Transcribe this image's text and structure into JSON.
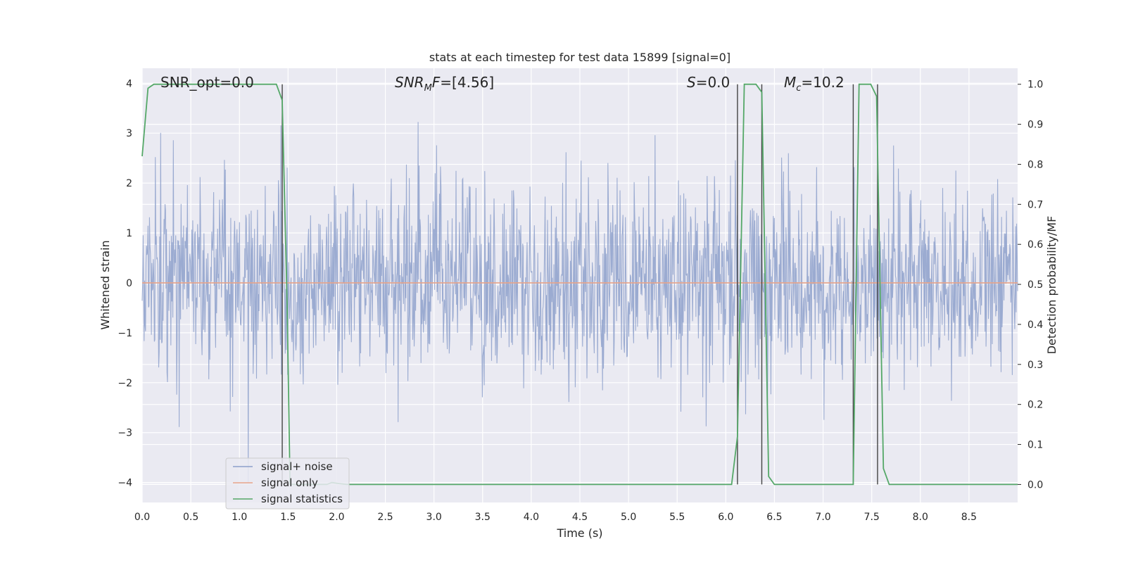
{
  "chart_data": {
    "type": "line",
    "title": "stats at each timestep for test data 15899 [signal=0]",
    "xlabel": "Time (s)",
    "ylabel_left": "Whitened strain",
    "ylabel_right": "Detection probability/MF",
    "xlim": [
      0,
      9.0
    ],
    "ylim_left": [
      -4.4,
      4.3
    ],
    "ylim_right": [
      -0.045,
      1.04
    ],
    "xticks": [
      "0.0",
      "0.5",
      "1.0",
      "1.5",
      "2.0",
      "2.5",
      "3.0",
      "3.5",
      "4.0",
      "4.5",
      "5.0",
      "5.5",
      "6.0",
      "6.5",
      "7.0",
      "7.5",
      "8.0",
      "8.5"
    ],
    "yticks_left": [
      "−4",
      "−3",
      "−2",
      "−1",
      "0",
      "1",
      "2",
      "3",
      "4"
    ],
    "yticks_right": [
      "0.0",
      "0.1",
      "0.2",
      "0.3",
      "0.4",
      "0.5",
      "0.6",
      "0.7",
      "0.8",
      "0.9",
      "1.0"
    ],
    "grid": true,
    "legend_position": "lower-left",
    "annotations": {
      "snr_opt": "SNR_opt=0.0",
      "snr_mf_prefix": "SNR",
      "snr_mf_sub": "M",
      "snr_mf_suffix": "F=[4.56]",
      "s_italic": "S",
      "s_value": "=0.0",
      "mc_italic": "M",
      "mc_sub": "c",
      "mc_value": "=10.2"
    },
    "series": [
      {
        "name": "signal+ noise",
        "color": "#8da0cb",
        "description_axis": "left",
        "noise_std": 0.95,
        "samples": 1800
      },
      {
        "name": "signal only",
        "color": "#e8a48a",
        "description_axis": "left",
        "x": [
          0,
          9.0
        ],
        "y": [
          0,
          0
        ]
      },
      {
        "name": "signal statistics",
        "color": "#55a868",
        "description_axis": "right",
        "x": [
          0.0,
          0.06,
          0.12,
          1.38,
          1.44,
          1.49,
          1.52,
          1.6,
          1.9,
          1.95,
          2.0,
          2.1,
          6.06,
          6.12,
          6.19,
          6.31,
          6.37,
          6.44,
          6.5,
          7.31,
          7.37,
          7.49,
          7.55,
          7.62,
          7.68,
          9.0
        ],
        "y": [
          0.82,
          0.99,
          1.0,
          1.0,
          0.96,
          0.45,
          0.0,
          0.0,
          0.0,
          0.005,
          0.003,
          0.0,
          0.0,
          0.12,
          1.0,
          1.0,
          0.98,
          0.02,
          0.0,
          0.0,
          1.0,
          1.0,
          0.97,
          0.04,
          0.0,
          0.0
        ]
      }
    ],
    "vlines": [
      1.44,
      6.12,
      6.37,
      7.31,
      7.56
    ],
    "colors": {
      "background": "#eaeaf2",
      "grid": "#ffffff",
      "vline": "#444444"
    }
  }
}
